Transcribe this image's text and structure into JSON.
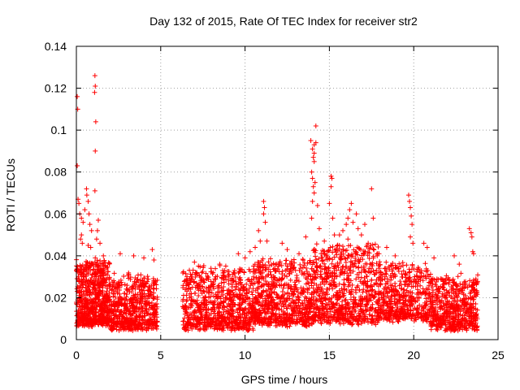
{
  "chart_data": {
    "type": "scatter",
    "title": "Day 132 of 2015, Rate Of TEC Index for receiver str2",
    "xlabel": "GPS time / hours",
    "ylabel": "ROTI / TECUs",
    "xlim": [
      0,
      25
    ],
    "ylim": [
      0,
      0.14
    ],
    "x_ticks": [
      "0",
      "5",
      "10",
      "15",
      "20",
      "25"
    ],
    "y_ticks": [
      "0",
      "0.02",
      "0.04",
      "0.06",
      "0.08",
      "0.1",
      "0.12",
      "0.14"
    ],
    "grid": true,
    "marker": "+",
    "color": "#ff0000",
    "gaps": [
      [
        4.8,
        6.3
      ]
    ],
    "clusters": [
      {
        "x_start": 0.0,
        "x_end": 2.0,
        "base": 0.008,
        "spread": 0.03,
        "count": 700
      },
      {
        "x_start": 2.0,
        "x_end": 4.8,
        "base": 0.006,
        "spread": 0.024,
        "count": 600
      },
      {
        "x_start": 6.3,
        "x_end": 10.5,
        "base": 0.006,
        "spread": 0.028,
        "count": 800
      },
      {
        "x_start": 10.5,
        "x_end": 14.0,
        "base": 0.008,
        "spread": 0.03,
        "count": 700
      },
      {
        "x_start": 14.0,
        "x_end": 18.0,
        "base": 0.009,
        "spread": 0.036,
        "count": 800
      },
      {
        "x_start": 18.0,
        "x_end": 21.0,
        "base": 0.01,
        "spread": 0.026,
        "count": 500
      },
      {
        "x_start": 21.0,
        "x_end": 23.8,
        "base": 0.006,
        "spread": 0.024,
        "count": 550
      }
    ],
    "outliers": [
      {
        "x": 0.05,
        "y": 0.116
      },
      {
        "x": 0.08,
        "y": 0.11
      },
      {
        "x": 0.05,
        "y": 0.083
      },
      {
        "x": 0.1,
        "y": 0.067
      },
      {
        "x": 0.15,
        "y": 0.065
      },
      {
        "x": 0.2,
        "y": 0.06
      },
      {
        "x": 0.3,
        "y": 0.058
      },
      {
        "x": 0.4,
        "y": 0.056
      },
      {
        "x": 0.5,
        "y": 0.062
      },
      {
        "x": 0.6,
        "y": 0.072
      },
      {
        "x": 0.62,
        "y": 0.069
      },
      {
        "x": 0.7,
        "y": 0.066
      },
      {
        "x": 0.75,
        "y": 0.06
      },
      {
        "x": 0.8,
        "y": 0.055
      },
      {
        "x": 0.9,
        "y": 0.052
      },
      {
        "x": 0.3,
        "y": 0.05
      },
      {
        "x": 0.25,
        "y": 0.048
      },
      {
        "x": 0.35,
        "y": 0.046
      },
      {
        "x": 0.7,
        "y": 0.045
      },
      {
        "x": 0.85,
        "y": 0.044
      },
      {
        "x": 1.1,
        "y": 0.126
      },
      {
        "x": 1.12,
        "y": 0.121
      },
      {
        "x": 1.08,
        "y": 0.118
      },
      {
        "x": 1.15,
        "y": 0.104
      },
      {
        "x": 1.12,
        "y": 0.09
      },
      {
        "x": 1.1,
        "y": 0.071
      },
      {
        "x": 1.3,
        "y": 0.057
      },
      {
        "x": 1.25,
        "y": 0.052
      },
      {
        "x": 1.2,
        "y": 0.048
      },
      {
        "x": 1.4,
        "y": 0.046
      },
      {
        "x": 1.6,
        "y": 0.04
      },
      {
        "x": 2.6,
        "y": 0.041
      },
      {
        "x": 3.4,
        "y": 0.04
      },
      {
        "x": 4.0,
        "y": 0.039
      },
      {
        "x": 4.5,
        "y": 0.043
      },
      {
        "x": 4.6,
        "y": 0.038
      },
      {
        "x": 7.0,
        "y": 0.037
      },
      {
        "x": 8.5,
        "y": 0.036
      },
      {
        "x": 9.6,
        "y": 0.041
      },
      {
        "x": 10.0,
        "y": 0.039
      },
      {
        "x": 10.3,
        "y": 0.042
      },
      {
        "x": 10.6,
        "y": 0.044
      },
      {
        "x": 10.8,
        "y": 0.052
      },
      {
        "x": 10.9,
        "y": 0.047
      },
      {
        "x": 11.1,
        "y": 0.066
      },
      {
        "x": 11.15,
        "y": 0.063
      },
      {
        "x": 11.1,
        "y": 0.06
      },
      {
        "x": 11.2,
        "y": 0.056
      },
      {
        "x": 11.3,
        "y": 0.047
      },
      {
        "x": 12.2,
        "y": 0.046
      },
      {
        "x": 12.5,
        "y": 0.043
      },
      {
        "x": 13.2,
        "y": 0.041
      },
      {
        "x": 13.6,
        "y": 0.049
      },
      {
        "x": 13.9,
        "y": 0.095
      },
      {
        "x": 14.0,
        "y": 0.091
      },
      {
        "x": 14.1,
        "y": 0.089
      },
      {
        "x": 14.05,
        "y": 0.087
      },
      {
        "x": 14.1,
        "y": 0.085
      },
      {
        "x": 13.95,
        "y": 0.08
      },
      {
        "x": 14.0,
        "y": 0.077
      },
      {
        "x": 14.05,
        "y": 0.073
      },
      {
        "x": 14.1,
        "y": 0.07
      },
      {
        "x": 14.0,
        "y": 0.066
      },
      {
        "x": 13.95,
        "y": 0.058
      },
      {
        "x": 14.2,
        "y": 0.102
      },
      {
        "x": 14.2,
        "y": 0.094
      },
      {
        "x": 14.1,
        "y": 0.093
      },
      {
        "x": 14.15,
        "y": 0.075
      },
      {
        "x": 14.3,
        "y": 0.064
      },
      {
        "x": 14.4,
        "y": 0.053
      },
      {
        "x": 14.7,
        "y": 0.047
      },
      {
        "x": 14.9,
        "y": 0.042
      },
      {
        "x": 15.1,
        "y": 0.078
      },
      {
        "x": 15.15,
        "y": 0.077
      },
      {
        "x": 15.1,
        "y": 0.073
      },
      {
        "x": 15.0,
        "y": 0.065
      },
      {
        "x": 15.2,
        "y": 0.058
      },
      {
        "x": 15.3,
        "y": 0.05
      },
      {
        "x": 15.6,
        "y": 0.05
      },
      {
        "x": 15.8,
        "y": 0.052
      },
      {
        "x": 16.0,
        "y": 0.055
      },
      {
        "x": 16.1,
        "y": 0.058
      },
      {
        "x": 16.2,
        "y": 0.062
      },
      {
        "x": 16.3,
        "y": 0.065
      },
      {
        "x": 16.1,
        "y": 0.048
      },
      {
        "x": 16.4,
        "y": 0.056
      },
      {
        "x": 16.6,
        "y": 0.06
      },
      {
        "x": 16.7,
        "y": 0.053
      },
      {
        "x": 16.9,
        "y": 0.05
      },
      {
        "x": 17.1,
        "y": 0.055
      },
      {
        "x": 17.3,
        "y": 0.046
      },
      {
        "x": 17.5,
        "y": 0.072
      },
      {
        "x": 17.6,
        "y": 0.058
      },
      {
        "x": 18.4,
        "y": 0.044
      },
      {
        "x": 18.9,
        "y": 0.04
      },
      {
        "x": 19.7,
        "y": 0.069
      },
      {
        "x": 19.75,
        "y": 0.066
      },
      {
        "x": 19.8,
        "y": 0.063
      },
      {
        "x": 19.85,
        "y": 0.059
      },
      {
        "x": 19.9,
        "y": 0.055
      },
      {
        "x": 19.8,
        "y": 0.049
      },
      {
        "x": 19.95,
        "y": 0.046
      },
      {
        "x": 20.6,
        "y": 0.046
      },
      {
        "x": 20.8,
        "y": 0.044
      },
      {
        "x": 21.2,
        "y": 0.039
      },
      {
        "x": 22.4,
        "y": 0.04
      },
      {
        "x": 22.7,
        "y": 0.036
      },
      {
        "x": 23.3,
        "y": 0.053
      },
      {
        "x": 23.4,
        "y": 0.051
      },
      {
        "x": 23.45,
        "y": 0.049
      },
      {
        "x": 23.5,
        "y": 0.042
      },
      {
        "x": 23.55,
        "y": 0.041
      }
    ]
  }
}
